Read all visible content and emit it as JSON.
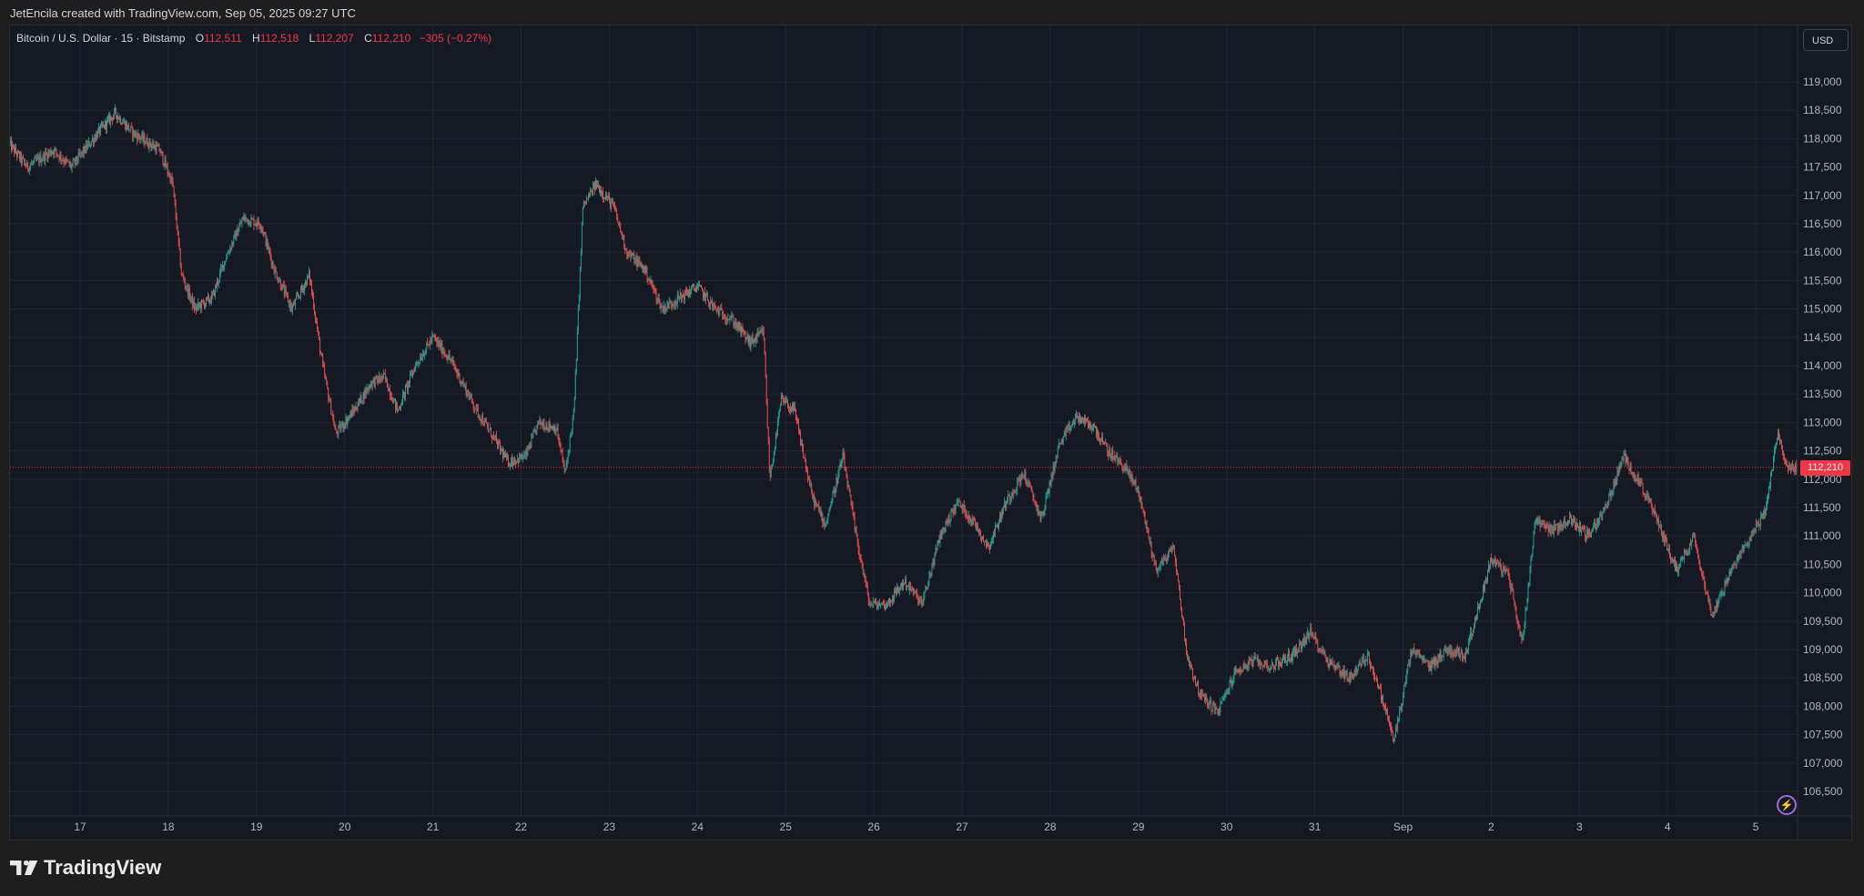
{
  "header": {
    "attribution": "JetEncila created with TradingView.com, Sep 05, 2025 09:27 UTC"
  },
  "legend": {
    "symbol": "Bitcoin / U.S. Dollar · 15 · Bitstamp",
    "open_label": "O",
    "open": "112,511",
    "high_label": "H",
    "high": "112,518",
    "low_label": "L",
    "low": "112,207",
    "close_label": "C",
    "close": "112,210",
    "change": "−305 (−0.27%)"
  },
  "currency": "USD",
  "last_price_label": "112,210",
  "brand": "TradingView",
  "colors": {
    "up": "#26a69a",
    "down": "#ef5350",
    "background": "#151924",
    "grid": "#232733",
    "last_price": "#f23645"
  },
  "chart_data": {
    "type": "candlestick",
    "interval": "15",
    "ylim": [
      106000,
      119500
    ],
    "y_ticks": [
      106500,
      107000,
      107500,
      108000,
      108500,
      109000,
      109500,
      110000,
      110500,
      111000,
      111500,
      112000,
      112500,
      113000,
      113500,
      114000,
      114500,
      115000,
      115500,
      116000,
      116500,
      117000,
      117500,
      118000,
      118500,
      119000
    ],
    "y_tick_labels": [
      "106,500",
      "107,000",
      "107,500",
      "108,000",
      "108,500",
      "109,000",
      "109,500",
      "110,000",
      "110,500",
      "111,000",
      "111,500",
      "112,000",
      "112,500",
      "113,000",
      "113,500",
      "114,000",
      "114,500",
      "115,000",
      "115,500",
      "116,000",
      "116,500",
      "117,000",
      "117,500",
      "118,000",
      "118,500",
      "119,000"
    ],
    "x_ticks": [
      {
        "label": "17",
        "day": 0
      },
      {
        "label": "18",
        "day": 1
      },
      {
        "label": "19",
        "day": 2
      },
      {
        "label": "20",
        "day": 3
      },
      {
        "label": "21",
        "day": 4
      },
      {
        "label": "22",
        "day": 5
      },
      {
        "label": "23",
        "day": 6
      },
      {
        "label": "24",
        "day": 7
      },
      {
        "label": "25",
        "day": 8
      },
      {
        "label": "26",
        "day": 9
      },
      {
        "label": "27",
        "day": 10
      },
      {
        "label": "28",
        "day": 11
      },
      {
        "label": "29",
        "day": 12
      },
      {
        "label": "30",
        "day": 13
      },
      {
        "label": "31",
        "day": 14
      },
      {
        "label": "Sep",
        "day": 15
      },
      {
        "label": "2",
        "day": 16
      },
      {
        "label": "3",
        "day": 17
      },
      {
        "label": "4",
        "day": 18
      },
      {
        "label": "5",
        "day": 19
      }
    ],
    "x_start_day": -0.8,
    "x_end_day": 19.5,
    "last_price": 112210,
    "close_path": [
      [
        -0.8,
        117900
      ],
      [
        -0.6,
        117500
      ],
      [
        -0.3,
        117800
      ],
      [
        -0.1,
        117500
      ],
      [
        0.2,
        118100
      ],
      [
        0.4,
        118450
      ],
      [
        0.6,
        118100
      ],
      [
        0.9,
        117800
      ],
      [
        1.05,
        117200
      ],
      [
        1.15,
        115600
      ],
      [
        1.3,
        115000
      ],
      [
        1.5,
        115200
      ],
      [
        1.65,
        115900
      ],
      [
        1.85,
        116600
      ],
      [
        2.05,
        116500
      ],
      [
        2.2,
        115700
      ],
      [
        2.4,
        115000
      ],
      [
        2.6,
        115600
      ],
      [
        2.75,
        114000
      ],
      [
        2.9,
        112800
      ],
      [
        3.1,
        113200
      ],
      [
        3.3,
        113700
      ],
      [
        3.45,
        113800
      ],
      [
        3.6,
        113200
      ],
      [
        3.8,
        114000
      ],
      [
        4.0,
        114500
      ],
      [
        4.2,
        114100
      ],
      [
        4.5,
        113200
      ],
      [
        4.7,
        112700
      ],
      [
        4.85,
        112300
      ],
      [
        5.05,
        112400
      ],
      [
        5.2,
        113000
      ],
      [
        5.4,
        112900
      ],
      [
        5.5,
        112100
      ],
      [
        5.6,
        113200
      ],
      [
        5.7,
        116800
      ],
      [
        5.85,
        117200
      ],
      [
        6.05,
        116800
      ],
      [
        6.2,
        116000
      ],
      [
        6.4,
        115700
      ],
      [
        6.6,
        115000
      ],
      [
        6.8,
        115200
      ],
      [
        7.0,
        115400
      ],
      [
        7.2,
        115000
      ],
      [
        7.4,
        114800
      ],
      [
        7.6,
        114400
      ],
      [
        7.75,
        114600
      ],
      [
        7.82,
        112000
      ],
      [
        7.95,
        113400
      ],
      [
        8.1,
        113200
      ],
      [
        8.3,
        111700
      ],
      [
        8.45,
        111200
      ],
      [
        8.65,
        112400
      ],
      [
        8.8,
        111000
      ],
      [
        8.95,
        109800
      ],
      [
        9.15,
        109800
      ],
      [
        9.35,
        110200
      ],
      [
        9.55,
        109800
      ],
      [
        9.75,
        111000
      ],
      [
        9.95,
        111600
      ],
      [
        10.15,
        111200
      ],
      [
        10.3,
        110800
      ],
      [
        10.5,
        111600
      ],
      [
        10.7,
        112100
      ],
      [
        10.9,
        111300
      ],
      [
        11.1,
        112600
      ],
      [
        11.3,
        113100
      ],
      [
        11.5,
        112900
      ],
      [
        11.65,
        112500
      ],
      [
        11.85,
        112200
      ],
      [
        12.0,
        111800
      ],
      [
        12.2,
        110400
      ],
      [
        12.4,
        110800
      ],
      [
        12.55,
        108900
      ],
      [
        12.7,
        108200
      ],
      [
        12.9,
        107900
      ],
      [
        13.1,
        108600
      ],
      [
        13.3,
        108800
      ],
      [
        13.5,
        108700
      ],
      [
        13.75,
        108900
      ],
      [
        13.95,
        109300
      ],
      [
        14.15,
        108800
      ],
      [
        14.4,
        108500
      ],
      [
        14.6,
        108900
      ],
      [
        14.75,
        108200
      ],
      [
        14.9,
        107400
      ],
      [
        15.1,
        109000
      ],
      [
        15.3,
        108700
      ],
      [
        15.5,
        109000
      ],
      [
        15.7,
        108900
      ],
      [
        15.85,
        109700
      ],
      [
        16.0,
        110600
      ],
      [
        16.2,
        110300
      ],
      [
        16.35,
        109100
      ],
      [
        16.5,
        111300
      ],
      [
        16.7,
        111100
      ],
      [
        16.9,
        111300
      ],
      [
        17.1,
        111000
      ],
      [
        17.3,
        111500
      ],
      [
        17.5,
        112400
      ],
      [
        17.7,
        111900
      ],
      [
        17.9,
        111200
      ],
      [
        18.1,
        110400
      ],
      [
        18.3,
        111000
      ],
      [
        18.5,
        109600
      ],
      [
        18.7,
        110300
      ],
      [
        18.9,
        110900
      ],
      [
        19.1,
        111400
      ],
      [
        19.25,
        112800
      ],
      [
        19.35,
        112210
      ]
    ]
  }
}
